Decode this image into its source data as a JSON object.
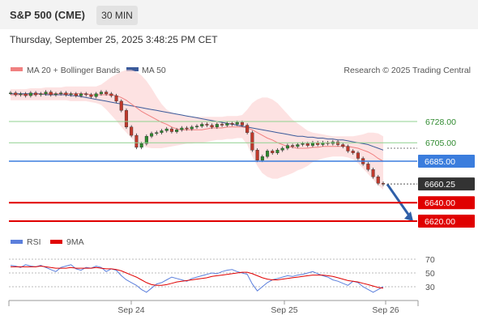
{
  "header": {
    "symbol": "S&P 500 (CME)",
    "timeframe": "30 MIN",
    "timestamp": "Thursday, September 25, 2025 3:48:25 PM CET"
  },
  "legend": {
    "ma20": "MA 20 + Bollinger Bands",
    "ma50": "MA 50",
    "source": "Research © 2025 Trading Central",
    "rsi": "RSI",
    "ma9": "9MA"
  },
  "colors": {
    "ma20": "#f08080",
    "ma50": "#3a5a9a",
    "bands": "#fcd6d6",
    "resistance": "#8fd18f",
    "pivot": "#3b7ddd",
    "support": "#e00000",
    "current": "#333333",
    "arrow": "#2f5fa8",
    "candle_up": "#2f8a2f",
    "candle_down": "#c0392b",
    "rsi": "#5b7fdc",
    "rsi_ma": "#e00000"
  },
  "chart_data": {
    "type": "candlestick",
    "title": "S&P 500 (CME)",
    "interval": "30 MIN",
    "x_ticks": [
      "Sep 24",
      "Sep 25",
      "Sep 26"
    ],
    "ylim": [
      6600,
      6775
    ],
    "levels": [
      {
        "value": 6728.0,
        "label": "6728.00",
        "kind": "resistance"
      },
      {
        "value": 6705.0,
        "label": "6705.00",
        "kind": "resistance"
      },
      {
        "value": 6685.0,
        "label": "6685.00",
        "kind": "pivot"
      },
      {
        "value": 6660.25,
        "label": "6660.25",
        "kind": "current"
      },
      {
        "value": 6640.0,
        "label": "6640.00",
        "kind": "support"
      },
      {
        "value": 6620.0,
        "label": "6620.00",
        "kind": "support"
      }
    ],
    "close": [
      6759,
      6757,
      6758,
      6756,
      6759,
      6757,
      6758,
      6760,
      6757,
      6758,
      6759,
      6757,
      6758,
      6756,
      6758,
      6757,
      6755,
      6758,
      6760,
      6758,
      6756,
      6750,
      6740,
      6722,
      6713,
      6700,
      6704,
      6712,
      6715,
      6716,
      6718,
      6720,
      6717,
      6719,
      6721,
      6720,
      6722,
      6723,
      6725,
      6724,
      6722,
      6725,
      6724,
      6726,
      6725,
      6727,
      6724,
      6716,
      6697,
      6686,
      6690,
      6696,
      6694,
      6697,
      6699,
      6702,
      6701,
      6703,
      6704,
      6702,
      6705,
      6703,
      6705,
      6704,
      6706,
      6703,
      6701,
      6696,
      6694,
      6688,
      6682,
      6676,
      6668,
      6661,
      6660
    ],
    "ma20": [
      6757,
      6757,
      6757,
      6757,
      6757,
      6757,
      6758,
      6758,
      6758,
      6758,
      6758,
      6758,
      6758,
      6758,
      6758,
      6758,
      6757,
      6757,
      6757,
      6757,
      6757,
      6756,
      6754,
      6751,
      6747,
      6743,
      6739,
      6736,
      6733,
      6730,
      6727,
      6725,
      6722,
      6720,
      6719,
      6719,
      6719,
      6719,
      6719,
      6720,
      6721,
      6721,
      6721,
      6722,
      6722,
      6722,
      6722,
      6721,
      6719,
      6716,
      6713,
      6710,
      6708,
      6705,
      6703,
      6701,
      6700,
      6699,
      6699,
      6699,
      6700,
      6700,
      6701,
      6701,
      6701,
      6701,
      6701,
      6701,
      6700,
      6699,
      6697,
      6695,
      6692,
      6688,
      6685
    ],
    "ma50": [
      6758,
      6758,
      6758,
      6758,
      6758,
      6758,
      6758,
      6757,
      6757,
      6757,
      6757,
      6757,
      6756,
      6756,
      6755,
      6754,
      6753,
      6752,
      6751,
      6750,
      6749,
      6748,
      6747,
      6746,
      6745,
      6744,
      6743,
      6742,
      6741,
      6740,
      6739,
      6738,
      6737,
      6736,
      6735,
      6734,
      6733,
      6732,
      6731,
      6730,
      6729,
      6728,
      6727,
      6726,
      6725,
      6724,
      6723,
      6722,
      6721,
      6720,
      6719,
      6718,
      6717,
      6716,
      6715,
      6714,
      6713,
      6712,
      6712,
      6711,
      6711,
      6710,
      6710,
      6709,
      6709,
      6708,
      6708,
      6707,
      6706,
      6705,
      6704,
      6703,
      6701,
      6699,
      6697
    ],
    "bb_upper": [
      6763,
      6763,
      6763,
      6763,
      6764,
      6764,
      6764,
      6765,
      6765,
      6765,
      6765,
      6766,
      6766,
      6766,
      6766,
      6766,
      6766,
      6766,
      6768,
      6772,
      6776,
      6779,
      6782,
      6784,
      6784,
      6782,
      6778,
      6772,
      6764,
      6755,
      6747,
      6741,
      6738,
      6736,
      6735,
      6734,
      6733,
      6733,
      6733,
      6733,
      6733,
      6733,
      6733,
      6734,
      6734,
      6734,
      6735,
      6741,
      6748,
      6752,
      6754,
      6754,
      6752,
      6748,
      6742,
      6736,
      6730,
      6726,
      6722,
      6718,
      6716,
      6715,
      6714,
      6713,
      6712,
      6712,
      6712,
      6712,
      6712,
      6713,
      6714,
      6716,
      6716,
      6715,
      6712
    ],
    "bb_lower": [
      6751,
      6751,
      6751,
      6751,
      6751,
      6751,
      6751,
      6751,
      6751,
      6751,
      6751,
      6751,
      6750,
      6750,
      6750,
      6750,
      6749,
      6748,
      6746,
      6741,
      6735,
      6729,
      6722,
      6716,
      6710,
      6705,
      6702,
      6700,
      6699,
      6699,
      6699,
      6700,
      6701,
      6702,
      6703,
      6704,
      6704,
      6705,
      6705,
      6706,
      6707,
      6708,
      6708,
      6709,
      6709,
      6710,
      6710,
      6703,
      6690,
      6680,
      6672,
      6668,
      6666,
      6666,
      6668,
      6670,
      6672,
      6675,
      6677,
      6680,
      6684,
      6686,
      6688,
      6689,
      6690,
      6690,
      6690,
      6689,
      6687,
      6683,
      6677,
      6671,
      6665,
      6659,
      6654
    ],
    "projection": {
      "from": 6660,
      "to": 6620
    },
    "rsi": {
      "levels": [
        70,
        50,
        30
      ],
      "ylim": [
        10,
        80
      ],
      "values": [
        61,
        60,
        58,
        62,
        60,
        59,
        61,
        58,
        55,
        52,
        58,
        60,
        62,
        56,
        54,
        58,
        57,
        60,
        58,
        52,
        56,
        54,
        46,
        40,
        36,
        32,
        26,
        22,
        28,
        34,
        36,
        40,
        44,
        42,
        40,
        38,
        42,
        44,
        46,
        48,
        50,
        49,
        52,
        54,
        55,
        52,
        50,
        48,
        34,
        24,
        30,
        36,
        40,
        42,
        44,
        46,
        45,
        47,
        48,
        50,
        52,
        49,
        46,
        44,
        40,
        38,
        35,
        32,
        38,
        36,
        30,
        26,
        22,
        26,
        30
      ],
      "ma9": [
        59,
        59,
        59,
        59,
        59,
        59,
        60,
        59,
        58,
        57,
        57,
        57,
        58,
        57,
        57,
        57,
        57,
        58,
        57,
        56,
        56,
        55,
        53,
        50,
        47,
        44,
        40,
        36,
        33,
        32,
        32,
        33,
        35,
        37,
        38,
        39,
        40,
        41,
        42,
        43,
        45,
        46,
        47,
        48,
        49,
        50,
        51,
        51,
        49,
        46,
        43,
        41,
        40,
        40,
        41,
        42,
        43,
        44,
        45,
        46,
        47,
        47,
        47,
        46,
        45,
        43,
        41,
        39,
        38,
        37,
        35,
        33,
        31,
        29,
        28
      ]
    }
  }
}
